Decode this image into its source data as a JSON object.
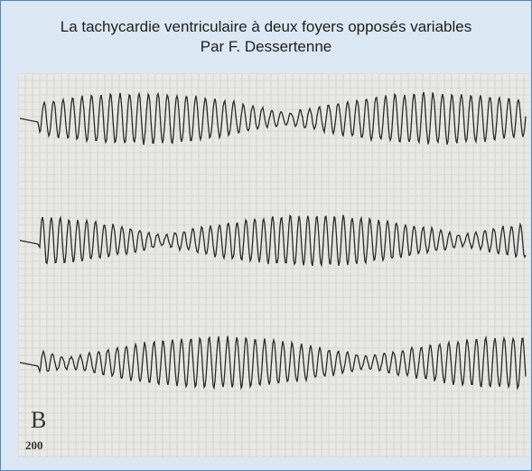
{
  "figure": {
    "title": "La tachycardie ventriculaire à deux foyers opposés variables",
    "author": "Par F. Dessertenne",
    "lead_label": "B",
    "scale_label": "200"
  }
}
